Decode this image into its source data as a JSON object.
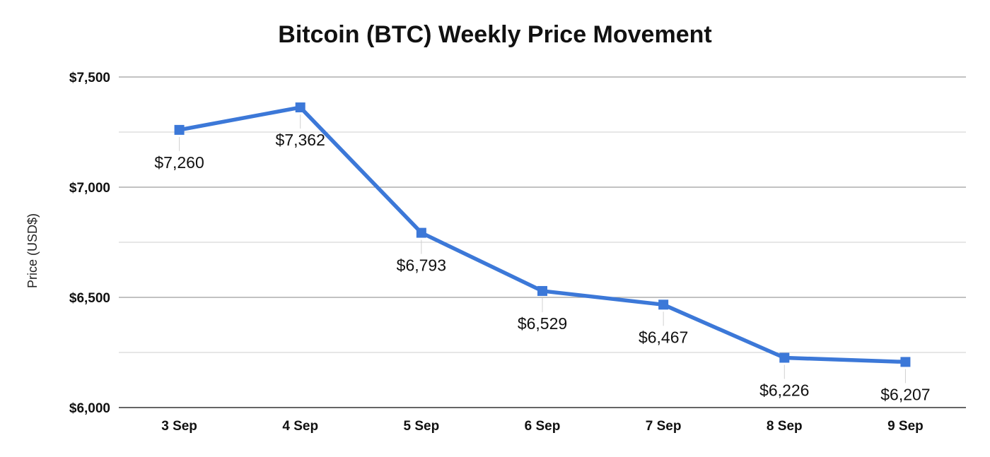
{
  "chart_data": {
    "type": "line",
    "title": "Bitcoin (BTC) Weekly Price Movement",
    "xlabel": "",
    "ylabel": "Price (USD$)",
    "categories": [
      "3 Sep",
      "4 Sep",
      "5 Sep",
      "6 Sep",
      "7 Sep",
      "8 Sep",
      "9 Sep"
    ],
    "series": [
      {
        "values": [
          7260,
          7362,
          6793,
          6529,
          6467,
          6226,
          6207
        ],
        "data_labels": [
          "$7,260",
          "$7,362",
          "$6,793",
          "$6,529",
          "$6,467",
          "$6,226",
          "$6,207"
        ],
        "color": "#3c78d8",
        "marker": "square"
      }
    ],
    "ylim": [
      6000,
      7500
    ],
    "y_ticks": [
      6000,
      6500,
      7000,
      7500
    ],
    "y_tick_labels": [
      "$6,000",
      "$6,500",
      "$7,000",
      "$7,500"
    ],
    "grid": true,
    "legend": "none"
  }
}
